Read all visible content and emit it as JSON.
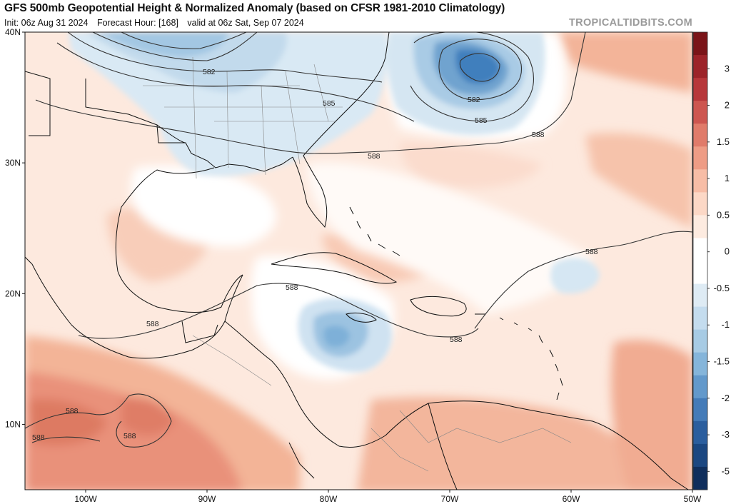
{
  "header": {
    "title": "GFS 500mb Geopotential Height & Normalized Anomaly (based on CFSR 1981-2010 Climatology)",
    "init": "Init: 06z Aug 31 2024",
    "forecast_hour": "Forecast Hour: [168]",
    "valid": "valid at 06z Sat, Sep 07 2024",
    "brand": "TROPICALTIDBITS.COM"
  },
  "map": {
    "lon_range": [
      -105,
      -50
    ],
    "lat_range": [
      5,
      40
    ],
    "lon_ticks": [
      {
        "value": -100,
        "label": "100W"
      },
      {
        "value": -90,
        "label": "90W"
      },
      {
        "value": -80,
        "label": "80W"
      },
      {
        "value": -70,
        "label": "70W"
      },
      {
        "value": -60,
        "label": "60W"
      },
      {
        "value": -50,
        "label": "50W"
      }
    ],
    "lat_ticks": [
      {
        "value": 40,
        "label": "40N"
      },
      {
        "value": 30,
        "label": "30N"
      },
      {
        "value": 20,
        "label": "20N"
      },
      {
        "value": 10,
        "label": "10N"
      }
    ],
    "contour_labels": [
      "582",
      "585",
      "588"
    ]
  },
  "colorbar": {
    "labels": [
      "3",
      "2",
      "1.5",
      "1",
      "0.5",
      "0",
      "-0.5",
      "-1",
      "-1.5",
      "-2",
      "-3",
      "-5"
    ],
    "colors": [
      "#7a1418",
      "#9c2329",
      "#b7373a",
      "#cd5650",
      "#e07b6a",
      "#ee9c85",
      "#f7bda6",
      "#fcd8c6",
      "#fdebe0",
      "#ffffff",
      "#ffffff",
      "#deebf4",
      "#c4dcee",
      "#a7cbe4",
      "#85b5da",
      "#6399cb",
      "#447bb8",
      "#2b5e9e",
      "#1b4781",
      "#0f2e5c"
    ]
  },
  "colors": {
    "warm_light": "#fde4d7",
    "warm_mid": "#f6c0a6",
    "warm_strong": "#e98d70",
    "cool_light": "#d6e7f3",
    "cool_mid": "#9fc6e2",
    "cool_strong": "#3f7fbd"
  }
}
